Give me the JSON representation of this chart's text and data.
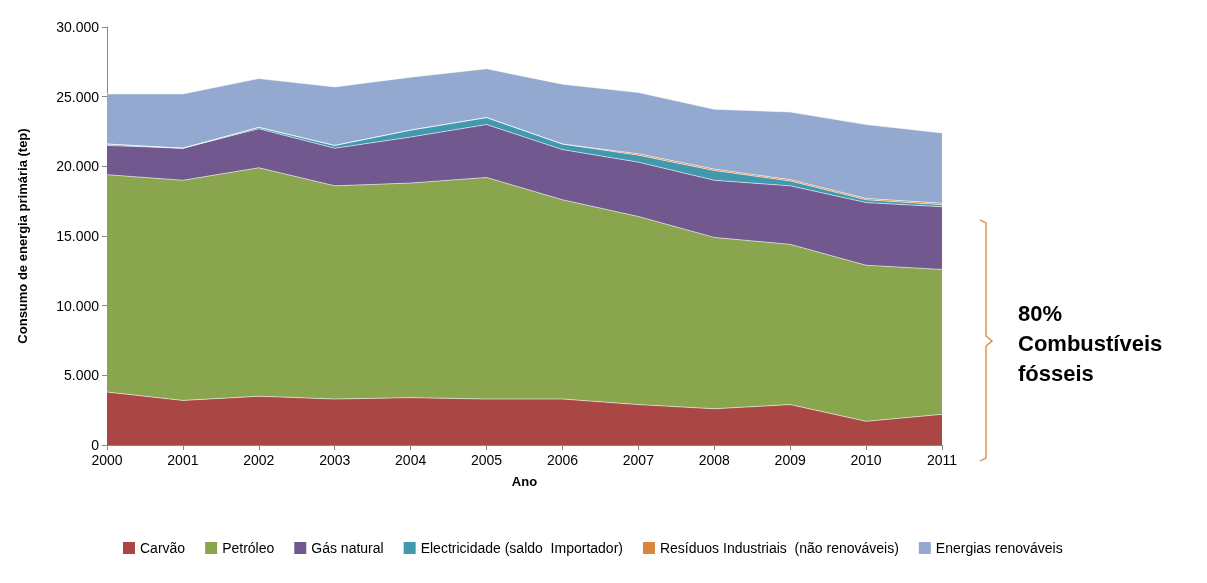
{
  "chart_data": {
    "type": "area",
    "stacked": true,
    "xlabel": "Ano",
    "ylabel": "Consumo de energia primária (tep)",
    "categories": [
      "2000",
      "2001",
      "2002",
      "2003",
      "2004",
      "2005",
      "2006",
      "2007",
      "2008",
      "2009",
      "2010",
      "2011"
    ],
    "series": [
      {
        "name": "Carvão",
        "color": "#aa4643",
        "values": [
          3800,
          3200,
          3500,
          3300,
          3400,
          3300,
          3300,
          2900,
          2600,
          2900,
          1700,
          2200
        ]
      },
      {
        "name": "Petróleo",
        "color": "#89a54e",
        "values": [
          15600,
          15800,
          16400,
          15300,
          15400,
          15900,
          14300,
          13500,
          12300,
          11500,
          11200,
          10400
        ]
      },
      {
        "name": "Gás natural",
        "color": "#71588f",
        "values": [
          2100,
          2300,
          2800,
          2700,
          3300,
          3800,
          3600,
          3900,
          4100,
          4200,
          4500,
          4500
        ]
      },
      {
        "name": "Electricidade (saldo  Importador)",
        "color": "#4198af",
        "values": [
          100,
          0,
          100,
          200,
          500,
          500,
          400,
          500,
          700,
          350,
          200,
          150
        ]
      },
      {
        "name": "Resíduos Industriais  (não renováveis)",
        "color": "#db843d",
        "values": [
          0,
          0,
          0,
          0,
          0,
          0,
          0,
          100,
          100,
          100,
          100,
          100
        ]
      },
      {
        "name": "Energias renováveis",
        "color": "#93a9cf",
        "values": [
          3600,
          3900,
          3500,
          4200,
          3800,
          3500,
          4300,
          4400,
          4300,
          4850,
          5300,
          5050
        ]
      }
    ],
    "ylim": [
      0,
      30000
    ],
    "yticks": [
      {
        "value": 0,
        "label": "0"
      },
      {
        "value": 5000,
        "label": "5.000"
      },
      {
        "value": 10000,
        "label": "10.000"
      },
      {
        "value": 15000,
        "label": "15.000"
      },
      {
        "value": 20000,
        "label": "20.000"
      },
      {
        "value": 25000,
        "label": "25.000"
      },
      {
        "value": 30000,
        "label": "30.000"
      }
    ],
    "grid": false,
    "legend": "bottom",
    "annotations": [
      "80% Combustíveis fósseis"
    ]
  }
}
